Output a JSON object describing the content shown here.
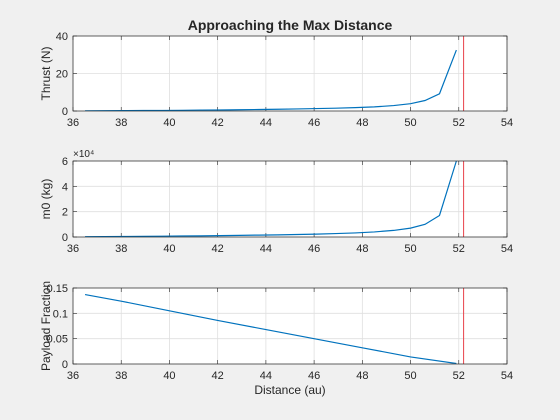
{
  "figure_title": "Approaching the Max Distance",
  "colors": {
    "background": "#f0f0f0",
    "axes_face": "#ffffff",
    "axis_line": "#262626",
    "grid": "#dfdfdf",
    "series_line": "#0072bd",
    "marker_line": "#e8414a"
  },
  "chart_data": [
    {
      "type": "line",
      "title": "Approaching the Max Distance",
      "xlabel": "",
      "ylabel": "Thrust (N)",
      "xlim": [
        36,
        54
      ],
      "ylim": [
        0,
        40
      ],
      "xticks": [
        36,
        38,
        40,
        42,
        44,
        46,
        48,
        50,
        52,
        54
      ],
      "yticks": [
        0,
        20,
        40
      ],
      "ytick_labels": [
        "0",
        "20",
        "40"
      ],
      "grid": true,
      "series": [
        {
          "x": [
            36.5,
            37.3,
            38.1,
            38.9,
            39.7,
            40.5,
            41.3,
            42.1,
            42.9,
            43.7,
            44.5,
            45.3,
            46.1,
            46.9,
            47.7,
            48.5,
            49.3,
            50.0,
            50.6,
            51.2,
            51.9
          ],
          "y": [
            0.1,
            0.15,
            0.2,
            0.25,
            0.3,
            0.35,
            0.45,
            0.55,
            0.65,
            0.8,
            0.95,
            1.1,
            1.3,
            1.5,
            1.8,
            2.2,
            2.9,
            3.9,
            5.6,
            9.2,
            32.5
          ]
        }
      ],
      "vertical_line_x": 52.2
    },
    {
      "type": "line",
      "title": "",
      "xlabel": "",
      "ylabel": "m0 (kg)",
      "exponent_label": "×10⁴",
      "xlim": [
        36,
        54
      ],
      "ylim": [
        0,
        6
      ],
      "xticks": [
        36,
        38,
        40,
        42,
        44,
        46,
        48,
        50,
        52,
        54
      ],
      "yticks": [
        0,
        2,
        4,
        6
      ],
      "ytick_labels": [
        "0",
        "2",
        "4",
        "6"
      ],
      "grid": true,
      "series": [
        {
          "x": [
            36.5,
            37.3,
            38.1,
            38.9,
            39.7,
            40.5,
            41.3,
            42.1,
            42.9,
            43.7,
            44.5,
            45.3,
            46.1,
            46.9,
            47.7,
            48.5,
            49.3,
            50.0,
            50.6,
            51.2,
            51.9
          ],
          "y": [
            0.02,
            0.03,
            0.04,
            0.05,
            0.06,
            0.08,
            0.09,
            0.11,
            0.13,
            0.15,
            0.17,
            0.2,
            0.23,
            0.27,
            0.32,
            0.4,
            0.52,
            0.7,
            1.0,
            1.7,
            6.0
          ]
        }
      ],
      "vertical_line_x": 52.2
    },
    {
      "type": "line",
      "title": "",
      "xlabel": "Distance (au)",
      "ylabel": "Payload Fraction",
      "xlim": [
        36,
        54
      ],
      "ylim": [
        0,
        0.15
      ],
      "xticks": [
        36,
        38,
        40,
        42,
        44,
        46,
        48,
        50,
        52,
        54
      ],
      "yticks": [
        0,
        0.05,
        0.1,
        0.15
      ],
      "ytick_labels": [
        "0",
        "0.05",
        "0.1",
        "0.15"
      ],
      "grid": true,
      "series": [
        {
          "x": [
            36.5,
            38.0,
            40.0,
            42.0,
            44.0,
            46.0,
            48.0,
            50.0,
            51.9
          ],
          "y": [
            0.137,
            0.124,
            0.105,
            0.086,
            0.068,
            0.05,
            0.032,
            0.014,
            0.001
          ]
        }
      ],
      "vertical_line_x": 52.2
    }
  ]
}
